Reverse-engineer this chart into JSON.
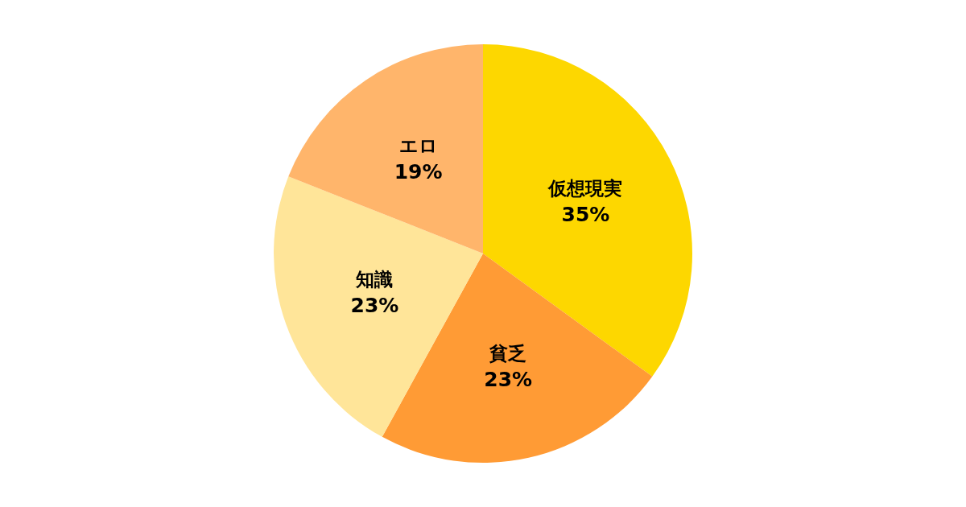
{
  "chart_data": {
    "type": "pie",
    "categories": [
      "仮想現実",
      "貧乏",
      "知識",
      "エロ"
    ],
    "values": [
      35,
      23,
      23,
      19
    ],
    "value_labels": [
      "35%",
      "23%",
      "23%",
      "19%"
    ],
    "colors": [
      "#fdd700",
      "#ff9b35",
      "#ffe599",
      "#ffb56b"
    ]
  }
}
